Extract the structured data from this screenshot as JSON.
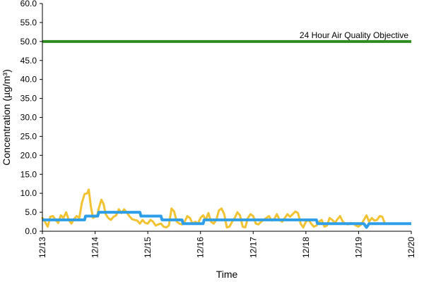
{
  "chart_data": {
    "type": "line",
    "title": "",
    "xlabel": "Time",
    "ylabel": "Concentration (µg/m³)",
    "ylim": [
      0,
      60
    ],
    "y_ticks": [
      "0.0",
      "5.0",
      "10.0",
      "15.0",
      "20.0",
      "25.0",
      "30.0",
      "35.0",
      "40.0",
      "45.0",
      "50.0",
      "55.0",
      "60.0"
    ],
    "xlim": [
      0,
      7
    ],
    "x_ticks": [
      {
        "x": 0,
        "label": "12/13"
      },
      {
        "x": 1,
        "label": "12/14"
      },
      {
        "x": 2,
        "label": "12/15"
      },
      {
        "x": 3,
        "label": "12/16"
      },
      {
        "x": 4,
        "label": "12/17"
      },
      {
        "x": 5,
        "label": "12/18"
      },
      {
        "x": 6,
        "label": "12/19"
      },
      {
        "x": 7,
        "label": "12/20"
      }
    ],
    "grid": false,
    "legend": "none",
    "reference_line": {
      "label": "24 Hour Air Quality Objective",
      "value": 50,
      "color": "#2e8b1f"
    },
    "series": [
      {
        "color": "#f1c232",
        "points": [
          [
            0.0,
            3.5
          ],
          [
            0.05,
            2.5
          ],
          [
            0.1,
            1.2
          ],
          [
            0.15,
            3.8
          ],
          [
            0.2,
            4.0
          ],
          [
            0.25,
            3.0
          ],
          [
            0.3,
            2.2
          ],
          [
            0.35,
            4.2
          ],
          [
            0.4,
            3.5
          ],
          [
            0.45,
            5.0
          ],
          [
            0.5,
            3.0
          ],
          [
            0.55,
            2.0
          ],
          [
            0.6,
            3.2
          ],
          [
            0.65,
            4.0
          ],
          [
            0.7,
            3.5
          ],
          [
            0.75,
            7.5
          ],
          [
            0.8,
            9.8
          ],
          [
            0.85,
            10.0
          ],
          [
            0.88,
            11.0
          ],
          [
            0.92,
            6.5
          ],
          [
            0.96,
            3.5
          ],
          [
            1.0,
            3.8
          ],
          [
            1.04,
            4.2
          ],
          [
            1.08,
            6.5
          ],
          [
            1.12,
            8.3
          ],
          [
            1.16,
            7.2
          ],
          [
            1.2,
            4.5
          ],
          [
            1.25,
            3.5
          ],
          [
            1.3,
            3.0
          ],
          [
            1.35,
            3.8
          ],
          [
            1.4,
            4.2
          ],
          [
            1.45,
            5.8
          ],
          [
            1.5,
            4.8
          ],
          [
            1.55,
            5.8
          ],
          [
            1.6,
            5.0
          ],
          [
            1.65,
            4.0
          ],
          [
            1.7,
            3.2
          ],
          [
            1.75,
            3.0
          ],
          [
            1.8,
            2.8
          ],
          [
            1.85,
            2.0
          ],
          [
            1.9,
            3.0
          ],
          [
            1.95,
            2.2
          ],
          [
            2.0,
            2.0
          ],
          [
            2.05,
            3.0
          ],
          [
            2.1,
            2.5
          ],
          [
            2.15,
            1.5
          ],
          [
            2.2,
            1.8
          ],
          [
            2.25,
            2.0
          ],
          [
            2.3,
            1.2
          ],
          [
            2.35,
            1.0
          ],
          [
            2.4,
            1.5
          ],
          [
            2.45,
            6.0
          ],
          [
            2.5,
            5.2
          ],
          [
            2.55,
            2.5
          ],
          [
            2.6,
            2.0
          ],
          [
            2.65,
            1.8
          ],
          [
            2.7,
            2.5
          ],
          [
            2.75,
            4.0
          ],
          [
            2.8,
            3.5
          ],
          [
            2.85,
            2.0
          ],
          [
            2.9,
            2.5
          ],
          [
            2.95,
            2.0
          ],
          [
            3.0,
            3.5
          ],
          [
            3.05,
            4.2
          ],
          [
            3.1,
            3.0
          ],
          [
            3.15,
            4.8
          ],
          [
            3.2,
            2.5
          ],
          [
            3.25,
            2.0
          ],
          [
            3.3,
            3.0
          ],
          [
            3.35,
            5.5
          ],
          [
            3.4,
            6.0
          ],
          [
            3.45,
            4.5
          ],
          [
            3.5,
            1.0
          ],
          [
            3.55,
            1.2
          ],
          [
            3.6,
            2.5
          ],
          [
            3.65,
            3.5
          ],
          [
            3.7,
            5.0
          ],
          [
            3.75,
            4.2
          ],
          [
            3.8,
            1.2
          ],
          [
            3.85,
            1.0
          ],
          [
            3.9,
            3.5
          ],
          [
            3.95,
            4.5
          ],
          [
            4.0,
            4.0
          ],
          [
            4.05,
            2.0
          ],
          [
            4.1,
            1.8
          ],
          [
            4.15,
            2.5
          ],
          [
            4.2,
            3.0
          ],
          [
            4.25,
            3.5
          ],
          [
            4.3,
            4.0
          ],
          [
            4.35,
            2.8
          ],
          [
            4.4,
            3.2
          ],
          [
            4.45,
            4.5
          ],
          [
            4.5,
            3.0
          ],
          [
            4.55,
            2.5
          ],
          [
            4.6,
            3.5
          ],
          [
            4.65,
            4.5
          ],
          [
            4.7,
            3.8
          ],
          [
            4.75,
            4.5
          ],
          [
            4.8,
            5.2
          ],
          [
            4.85,
            4.8
          ],
          [
            4.9,
            2.0
          ],
          [
            4.95,
            1.0
          ],
          [
            5.0,
            2.5
          ],
          [
            5.05,
            3.0
          ],
          [
            5.1,
            2.0
          ],
          [
            5.15,
            1.2
          ],
          [
            5.2,
            1.5
          ],
          [
            5.25,
            2.5
          ],
          [
            5.3,
            3.0
          ],
          [
            5.35,
            1.2
          ],
          [
            5.4,
            1.5
          ],
          [
            5.45,
            3.5
          ],
          [
            5.5,
            3.0
          ],
          [
            5.55,
            2.2
          ],
          [
            5.6,
            3.2
          ],
          [
            5.65,
            4.0
          ],
          [
            5.7,
            2.5
          ],
          [
            5.75,
            2.0
          ],
          [
            5.8,
            1.8
          ],
          [
            5.85,
            2.2
          ],
          [
            5.9,
            2.0
          ],
          [
            5.95,
            1.5
          ],
          [
            6.0,
            1.2
          ],
          [
            6.05,
            1.8
          ],
          [
            6.1,
            3.0
          ],
          [
            6.15,
            4.2
          ],
          [
            6.2,
            2.5
          ],
          [
            6.25,
            3.5
          ],
          [
            6.3,
            2.8
          ],
          [
            6.35,
            3.0
          ],
          [
            6.4,
            4.0
          ],
          [
            6.45,
            3.8
          ],
          [
            6.5,
            2.0
          ]
        ]
      },
      {
        "color": "#2e9ee8",
        "points": [
          [
            0.0,
            3.0
          ],
          [
            0.8,
            3.0
          ],
          [
            0.82,
            4.0
          ],
          [
            1.05,
            4.0
          ],
          [
            1.07,
            5.0
          ],
          [
            1.85,
            5.0
          ],
          [
            1.87,
            4.0
          ],
          [
            2.25,
            4.0
          ],
          [
            2.27,
            3.0
          ],
          [
            2.65,
            3.0
          ],
          [
            2.67,
            2.0
          ],
          [
            3.05,
            2.0
          ],
          [
            3.07,
            3.0
          ],
          [
            5.2,
            3.0
          ],
          [
            5.22,
            2.0
          ],
          [
            6.1,
            2.0
          ],
          [
            6.15,
            1.0
          ],
          [
            6.2,
            2.0
          ],
          [
            7.0,
            2.0
          ]
        ]
      }
    ]
  }
}
